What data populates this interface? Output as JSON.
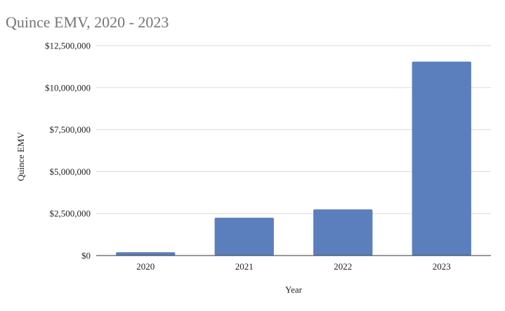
{
  "chart_data": {
    "type": "bar",
    "title": "Quince EMV, 2020 - 2023",
    "xlabel": "Year",
    "ylabel": "Quince EMV",
    "categories": [
      "2020",
      "2021",
      "2022",
      "2023"
    ],
    "series": [
      {
        "values": [
          200000,
          2250000,
          2750000,
          11550000
        ]
      }
    ],
    "ylim": [
      0,
      12500000
    ],
    "y_ticks": [
      0,
      2500000,
      5000000,
      7500000,
      10000000,
      12500000
    ],
    "y_tick_labels": [
      "$0",
      "$2,500,000",
      "$5,000,000",
      "$7,500,000",
      "$10,000,000",
      "$12,500,000"
    ],
    "grid": true,
    "legend": "none"
  },
  "colors": {
    "bar": "#5b7fbd",
    "title": "#757575",
    "gridline": "#d9d9d9",
    "axis": "#333333"
  }
}
